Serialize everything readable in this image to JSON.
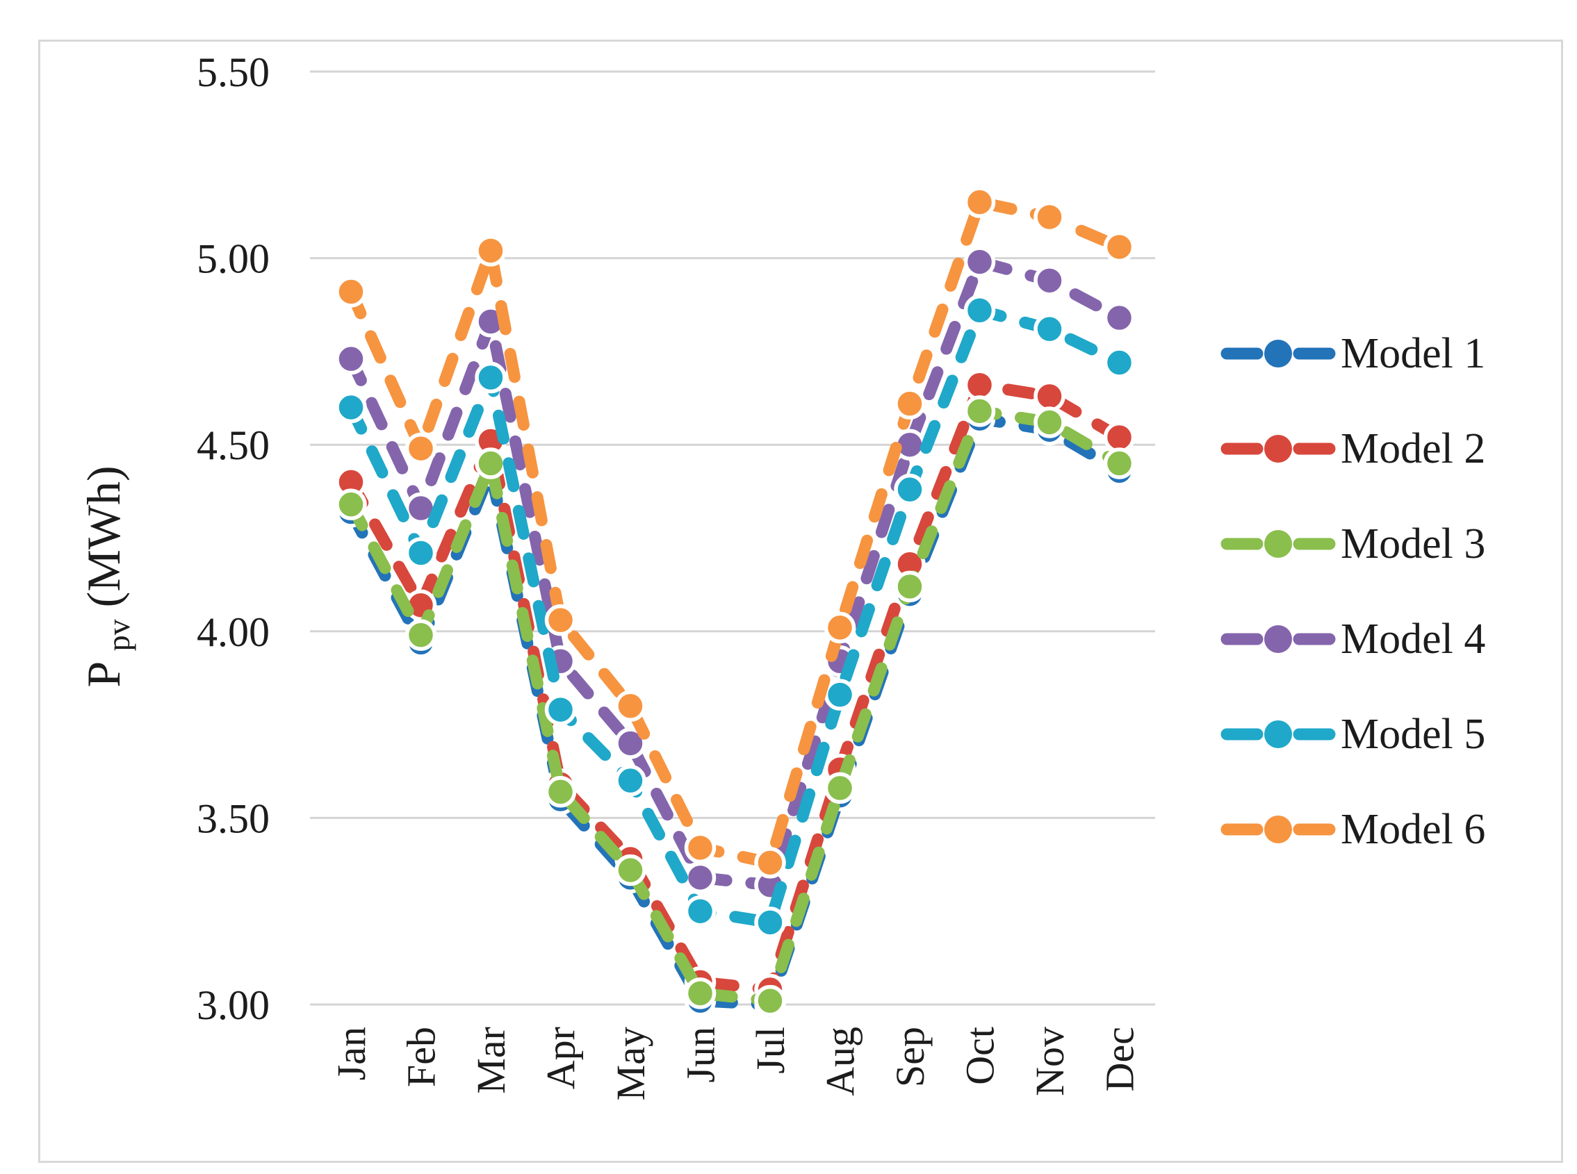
{
  "chart_data": {
    "type": "line",
    "title": "",
    "xlabel": "",
    "ylabel": "Ppv (MWh)",
    "ylabel_parts": {
      "base": "P",
      "sub": "pv",
      "unit": " (MWh)"
    },
    "categories": [
      "Jan",
      "Feb",
      "Mar",
      "Apr",
      "May",
      "Jun",
      "Jul",
      "Aug",
      "Sep",
      "Oct",
      "Nov",
      "Dec"
    ],
    "y_axis": {
      "min": 3.0,
      "max": 5.5,
      "step": 0.5,
      "tick_labels": [
        "5.50",
        "5.00",
        "4.50",
        "4.00",
        "3.50",
        "3.00"
      ],
      "grid": true
    },
    "series": [
      {
        "name": "Model 1",
        "color": "#2373B9",
        "values": [
          4.32,
          3.97,
          4.43,
          3.55,
          3.34,
          3.01,
          3.0,
          3.56,
          4.1,
          4.57,
          4.54,
          4.43
        ]
      },
      {
        "name": "Model 2",
        "color": "#D8473C",
        "values": [
          4.4,
          4.07,
          4.51,
          3.59,
          3.39,
          3.06,
          3.04,
          3.63,
          4.18,
          4.66,
          4.63,
          4.52
        ]
      },
      {
        "name": "Model 3",
        "color": "#8ABE4D",
        "values": [
          4.34,
          3.99,
          4.45,
          3.57,
          3.36,
          3.03,
          3.01,
          3.58,
          4.12,
          4.59,
          4.56,
          4.45
        ]
      },
      {
        "name": "Model 4",
        "color": "#8465AC",
        "values": [
          4.73,
          4.33,
          4.83,
          3.92,
          3.7,
          3.34,
          3.32,
          3.92,
          4.5,
          4.99,
          4.94,
          4.84
        ]
      },
      {
        "name": "Model 5",
        "color": "#1FA8C9",
        "values": [
          4.6,
          4.21,
          4.68,
          3.79,
          3.6,
          3.25,
          3.22,
          3.83,
          4.38,
          4.86,
          4.81,
          4.72
        ]
      },
      {
        "name": "Model 6",
        "color": "#F79440",
        "values": [
          4.91,
          4.49,
          5.02,
          4.03,
          3.8,
          3.42,
          3.38,
          4.01,
          4.61,
          5.15,
          5.11,
          5.03
        ]
      }
    ],
    "legend": {
      "position": "right",
      "entries": [
        "Model 1",
        "Model 2",
        "Model 3",
        "Model 4",
        "Model 5",
        "Model 6"
      ]
    },
    "colors": {
      "grid": "#D4D4D4",
      "text": "#1C1C1C",
      "frame": "#D8D8D8"
    }
  }
}
